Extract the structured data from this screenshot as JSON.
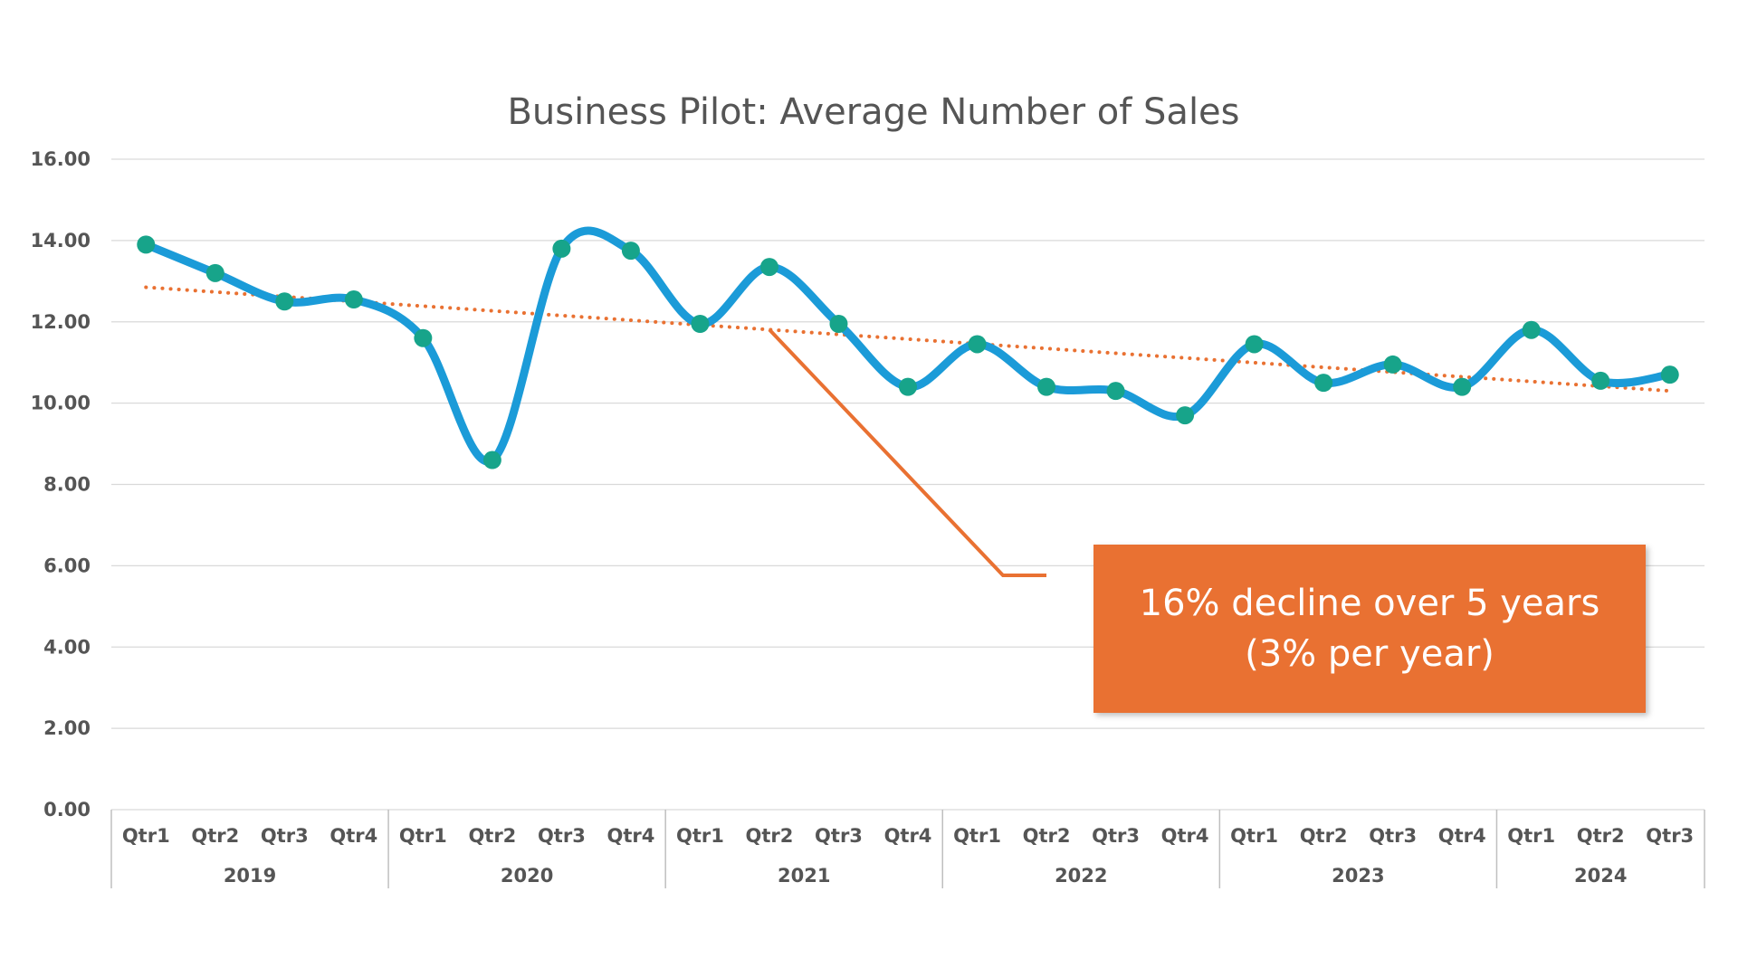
{
  "chart_data": {
    "type": "line",
    "title": "Business Pilot: Average Number of Sales",
    "xlabel": "",
    "ylabel": "",
    "ylim": [
      0,
      16
    ],
    "yticks": [
      "0.00",
      "2.00",
      "4.00",
      "6.00",
      "8.00",
      "10.00",
      "12.00",
      "14.00",
      "16.00"
    ],
    "grid": true,
    "categories": [
      "Qtr1",
      "Qtr2",
      "Qtr3",
      "Qtr4",
      "Qtr1",
      "Qtr2",
      "Qtr3",
      "Qtr4",
      "Qtr1",
      "Qtr2",
      "Qtr3",
      "Qtr4",
      "Qtr1",
      "Qtr2",
      "Qtr3",
      "Qtr4",
      "Qtr1",
      "Qtr2",
      "Qtr3",
      "Qtr4",
      "Qtr1",
      "Qtr2",
      "Qtr3"
    ],
    "groups": [
      {
        "label": "2019",
        "count": 4
      },
      {
        "label": "2020",
        "count": 4
      },
      {
        "label": "2021",
        "count": 4
      },
      {
        "label": "2022",
        "count": 4
      },
      {
        "label": "2023",
        "count": 4
      },
      {
        "label": "2024",
        "count": 3
      }
    ],
    "series": [
      {
        "values": [
          13.9,
          13.2,
          12.5,
          12.55,
          11.6,
          8.6,
          13.8,
          13.75,
          11.95,
          13.35,
          11.95,
          10.4,
          11.45,
          10.4,
          10.3,
          9.7,
          11.45,
          10.5,
          10.95,
          10.4,
          11.8,
          10.55,
          10.7
        ],
        "line_color": "#1B9BD8",
        "marker_color": "#17A48A"
      }
    ],
    "trendline": {
      "type": "linear",
      "start": 12.85,
      "end": 10.3,
      "color": "#E97132",
      "style": "dotted"
    },
    "annotation": {
      "lines": [
        "16% decline over 5 years",
        "(3% per year)"
      ],
      "box_color": "#E97132",
      "text_color": "#FFFFFF"
    }
  }
}
